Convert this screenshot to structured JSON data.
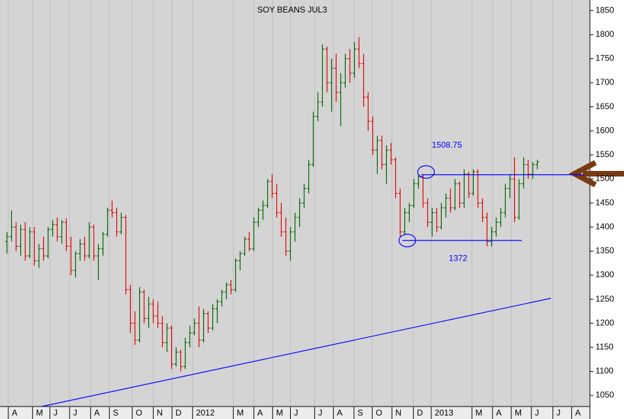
{
  "chart_data": {
    "type": "ohlc",
    "title": "SOY BEANS JUL3",
    "ohlc": [
      [
        1370,
        1390,
        1345,
        1380
      ],
      [
        1380,
        1435,
        1370,
        1400
      ],
      [
        1400,
        1410,
        1350,
        1360
      ],
      [
        1360,
        1405,
        1340,
        1395
      ],
      [
        1395,
        1410,
        1330,
        1340
      ],
      [
        1340,
        1400,
        1335,
        1390
      ],
      [
        1390,
        1400,
        1320,
        1330
      ],
      [
        1330,
        1365,
        1315,
        1355
      ],
      [
        1355,
        1380,
        1330,
        1340
      ],
      [
        1340,
        1400,
        1335,
        1395
      ],
      [
        1395,
        1415,
        1380,
        1405
      ],
      [
        1405,
        1420,
        1370,
        1380
      ],
      [
        1380,
        1415,
        1365,
        1410
      ],
      [
        1410,
        1418,
        1350,
        1360
      ],
      [
        1360,
        1380,
        1300,
        1310
      ],
      [
        1310,
        1350,
        1295,
        1345
      ],
      [
        1345,
        1375,
        1330,
        1365
      ],
      [
        1365,
        1380,
        1330,
        1340
      ],
      [
        1340,
        1410,
        1335,
        1400
      ],
      [
        1400,
        1405,
        1330,
        1340
      ],
      [
        1340,
        1365,
        1290,
        1355
      ],
      [
        1355,
        1390,
        1340,
        1385
      ],
      [
        1385,
        1440,
        1380,
        1435
      ],
      [
        1435,
        1455,
        1420,
        1430
      ],
      [
        1430,
        1440,
        1380,
        1390
      ],
      [
        1390,
        1430,
        1385,
        1420
      ],
      [
        1420,
        1425,
        1260,
        1270
      ],
      [
        1270,
        1280,
        1180,
        1200
      ],
      [
        1200,
        1225,
        1155,
        1165
      ],
      [
        1165,
        1275,
        1160,
        1265
      ],
      [
        1265,
        1270,
        1200,
        1210
      ],
      [
        1210,
        1255,
        1190,
        1240
      ],
      [
        1240,
        1250,
        1200,
        1215
      ],
      [
        1215,
        1245,
        1190,
        1200
      ],
      [
        1200,
        1215,
        1150,
        1160
      ],
      [
        1160,
        1200,
        1140,
        1190
      ],
      [
        1190,
        1195,
        1105,
        1115
      ],
      [
        1115,
        1150,
        1110,
        1140
      ],
      [
        1140,
        1145,
        1100,
        1110
      ],
      [
        1110,
        1170,
        1105,
        1160
      ],
      [
        1160,
        1195,
        1150,
        1180
      ],
      [
        1180,
        1210,
        1175,
        1200
      ],
      [
        1200,
        1235,
        1150,
        1165
      ],
      [
        1165,
        1230,
        1160,
        1220
      ],
      [
        1220,
        1225,
        1180,
        1190
      ],
      [
        1190,
        1240,
        1185,
        1230
      ],
      [
        1230,
        1250,
        1200,
        1245
      ],
      [
        1245,
        1270,
        1235,
        1265
      ],
      [
        1265,
        1285,
        1250,
        1280
      ],
      [
        1280,
        1290,
        1260,
        1270
      ],
      [
        1270,
        1335,
        1265,
        1330
      ],
      [
        1330,
        1350,
        1310,
        1345
      ],
      [
        1345,
        1380,
        1340,
        1375
      ],
      [
        1375,
        1390,
        1350,
        1355
      ],
      [
        1355,
        1420,
        1350,
        1410
      ],
      [
        1410,
        1440,
        1400,
        1435
      ],
      [
        1435,
        1455,
        1415,
        1445
      ],
      [
        1445,
        1500,
        1440,
        1495
      ],
      [
        1495,
        1510,
        1460,
        1470
      ],
      [
        1470,
        1490,
        1420,
        1430
      ],
      [
        1430,
        1450,
        1380,
        1390
      ],
      [
        1390,
        1420,
        1340,
        1350
      ],
      [
        1350,
        1400,
        1330,
        1390
      ],
      [
        1390,
        1430,
        1370,
        1420
      ],
      [
        1420,
        1460,
        1400,
        1450
      ],
      [
        1450,
        1490,
        1440,
        1480
      ],
      [
        1480,
        1540,
        1470,
        1530
      ],
      [
        1530,
        1640,
        1525,
        1630
      ],
      [
        1630,
        1680,
        1620,
        1660
      ],
      [
        1660,
        1780,
        1650,
        1770
      ],
      [
        1770,
        1775,
        1680,
        1700
      ],
      [
        1700,
        1750,
        1640,
        1730
      ],
      [
        1730,
        1760,
        1660,
        1680
      ],
      [
        1680,
        1720,
        1610,
        1700
      ],
      [
        1700,
        1760,
        1690,
        1750
      ],
      [
        1750,
        1770,
        1700,
        1720
      ],
      [
        1720,
        1785,
        1710,
        1770
      ],
      [
        1770,
        1795,
        1730,
        1740
      ],
      [
        1740,
        1760,
        1650,
        1670
      ],
      [
        1670,
        1680,
        1600,
        1620
      ],
      [
        1620,
        1630,
        1550,
        1560
      ],
      [
        1560,
        1590,
        1510,
        1580
      ],
      [
        1580,
        1590,
        1520,
        1530
      ],
      [
        1530,
        1570,
        1490,
        1560
      ],
      [
        1560,
        1575,
        1530,
        1540
      ],
      [
        1540,
        1545,
        1460,
        1470
      ],
      [
        1470,
        1480,
        1380,
        1390
      ],
      [
        1390,
        1440,
        1385,
        1430
      ],
      [
        1430,
        1450,
        1410,
        1445
      ],
      [
        1445,
        1500,
        1440,
        1490
      ],
      [
        1490,
        1510,
        1480,
        1505
      ],
      [
        1505,
        1510,
        1440,
        1450
      ],
      [
        1450,
        1460,
        1400,
        1410
      ],
      [
        1410,
        1440,
        1380,
        1430
      ],
      [
        1430,
        1440,
        1390,
        1400
      ],
      [
        1400,
        1450,
        1395,
        1440
      ],
      [
        1440,
        1470,
        1420,
        1460
      ],
      [
        1460,
        1480,
        1430,
        1440
      ],
      [
        1440,
        1500,
        1435,
        1490
      ],
      [
        1490,
        1495,
        1440,
        1450
      ],
      [
        1450,
        1520,
        1440,
        1510
      ],
      [
        1510,
        1515,
        1460,
        1470
      ],
      [
        1470,
        1520,
        1465,
        1515
      ],
      [
        1515,
        1520,
        1440,
        1450
      ],
      [
        1450,
        1460,
        1410,
        1420
      ],
      [
        1420,
        1430,
        1360,
        1370
      ],
      [
        1370,
        1400,
        1360,
        1390
      ],
      [
        1390,
        1420,
        1380,
        1410
      ],
      [
        1410,
        1440,
        1400,
        1430
      ],
      [
        1430,
        1490,
        1420,
        1480
      ],
      [
        1480,
        1510,
        1460,
        1500
      ],
      [
        1500,
        1545,
        1410,
        1420
      ],
      [
        1420,
        1500,
        1415,
        1490
      ],
      [
        1490,
        1545,
        1480,
        1530
      ],
      [
        1530,
        1540,
        1500,
        1510
      ],
      [
        1510,
        1535,
        1500,
        1530
      ],
      [
        1530,
        1540,
        1520,
        1535
      ]
    ],
    "up_color": "#006400",
    "down_color": "#e00000",
    "xlim": [
      -0.3,
      127.5
    ],
    "xticks": [
      {
        "value": 0.3,
        "label": "A"
      },
      {
        "value": 5.6,
        "label": "M"
      },
      {
        "value": 9.4,
        "label": "J"
      },
      {
        "value": 13.7,
        "label": "J"
      },
      {
        "value": 18.3,
        "label": "A"
      },
      {
        "value": 22.4,
        "label": "S"
      },
      {
        "value": 27.4,
        "label": "O"
      },
      {
        "value": 32,
        "label": "N"
      },
      {
        "value": 36.1,
        "label": "D"
      },
      {
        "value": 40.6,
        "label": "2012"
      },
      {
        "value": 49.5,
        "label": "M"
      },
      {
        "value": 54,
        "label": "A"
      },
      {
        "value": 58.1,
        "label": "M"
      },
      {
        "value": 62,
        "label": "J"
      },
      {
        "value": 67.3,
        "label": "J"
      },
      {
        "value": 71.4,
        "label": "A"
      },
      {
        "value": 75.9,
        "label": "S"
      },
      {
        "value": 79.9,
        "label": "O"
      },
      {
        "value": 84.2,
        "label": "N"
      },
      {
        "value": 88.9,
        "label": "D"
      },
      {
        "value": 92.8,
        "label": "2013"
      },
      {
        "value": 101.7,
        "label": "M"
      },
      {
        "value": 106.2,
        "label": "A"
      },
      {
        "value": 110.3,
        "label": "M"
      },
      {
        "value": 114.7,
        "label": "J"
      },
      {
        "value": 119.4,
        "label": "J"
      },
      {
        "value": 123.5,
        "label": "A"
      }
    ],
    "ylim": [
      1027,
      1872
    ],
    "yticks": [
      1050,
      1100,
      1150,
      1200,
      1250,
      1300,
      1350,
      1400,
      1450,
      1500,
      1550,
      1600,
      1650,
      1700,
      1750,
      1800,
      1850
    ],
    "grid": true,
    "trendline": {
      "x": [
        7.6,
        119
      ],
      "y": [
        1027,
        1252
      ],
      "color": "#0000ff"
    },
    "levels": [
      {
        "value": 1508.75,
        "x": [
          90.6,
          126.3
        ]
      },
      {
        "value": 1372,
        "x": [
          86.5,
          112.6
        ]
      }
    ]
  }
}
